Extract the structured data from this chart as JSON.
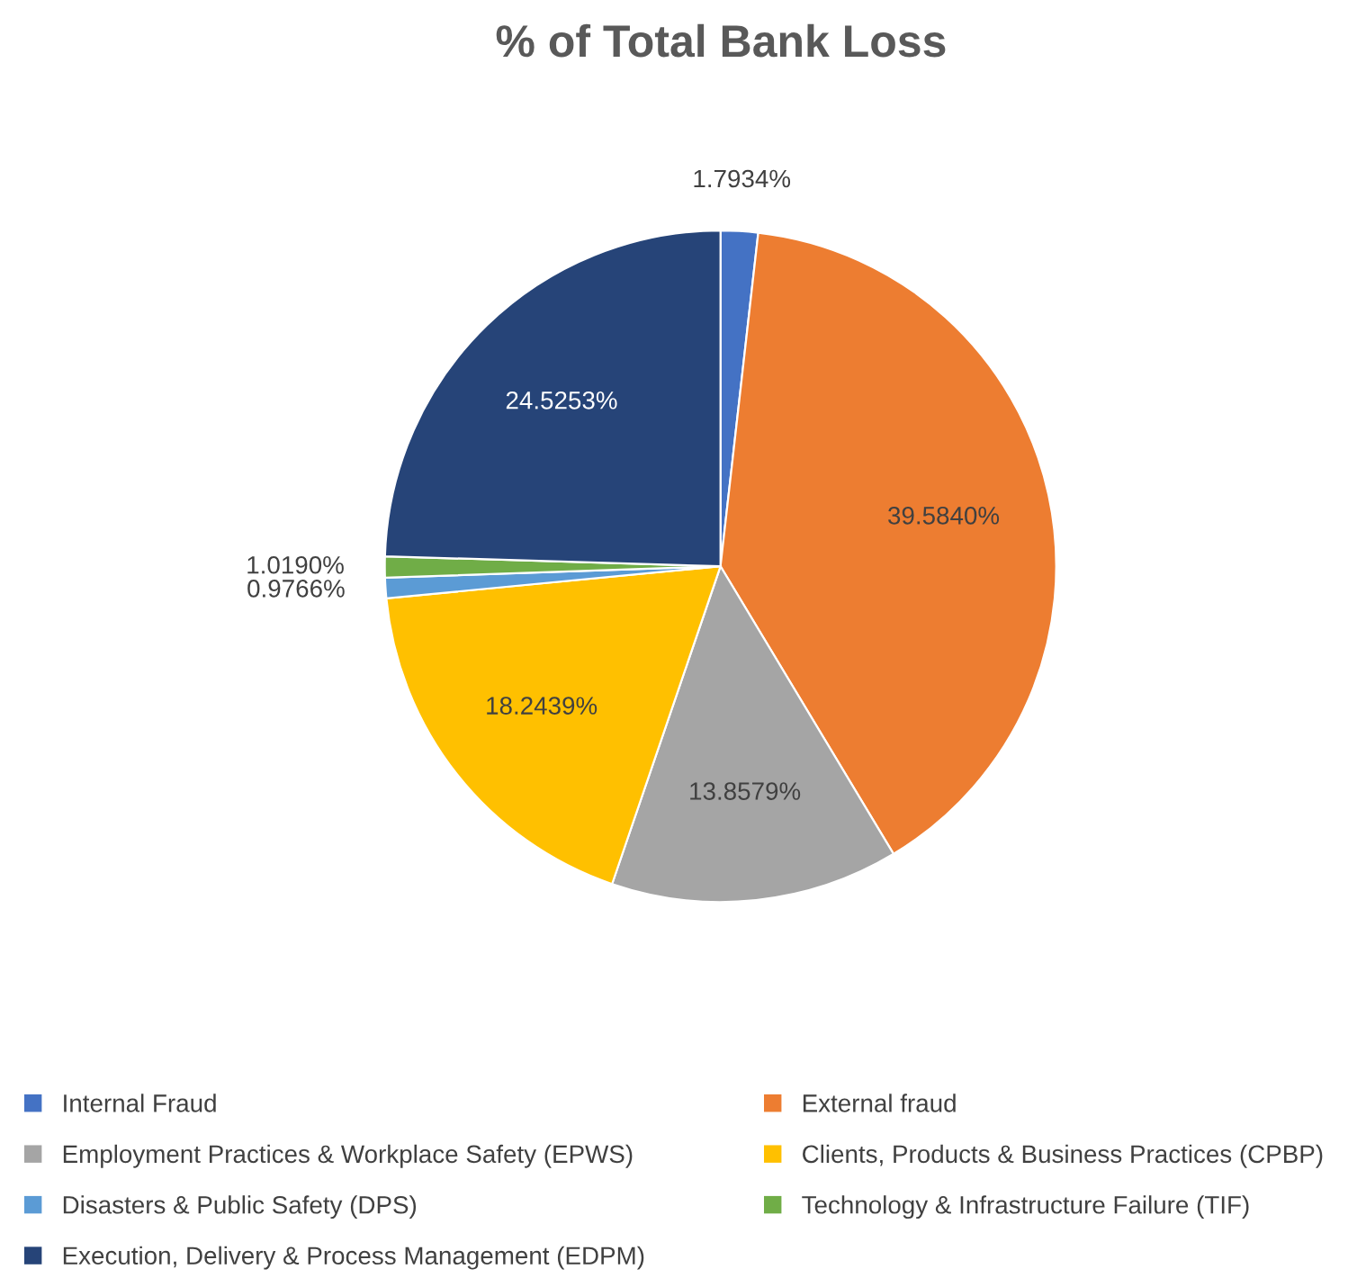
{
  "chart_data": {
    "type": "pie",
    "title": "% of Total Bank Loss",
    "categories": [
      "Internal Fraud",
      "External fraud",
      "Employment Practices & Workplace Safety (EPWS)",
      "Clients, Products & Business Practices (CPBP)",
      "Disasters & Public Safety (DPS)",
      "Technology & Infrastructure Failure (TIF)",
      "Execution, Delivery & Process Management (EDPM)"
    ],
    "values": [
      1.7934,
      39.584,
      13.8579,
      18.2439,
      0.9766,
      1.019,
      24.5253
    ],
    "value_labels": [
      "1.7934%",
      "39.5840%",
      "13.8579%",
      "18.2439%",
      "0.9766%",
      "1.0190%",
      "24.5253%"
    ],
    "colors": [
      "#4472c4",
      "#ed7d31",
      "#a5a5a5",
      "#ffc000",
      "#5b9bd5",
      "#70ad47",
      "#264478"
    ],
    "legend": "bottom"
  }
}
